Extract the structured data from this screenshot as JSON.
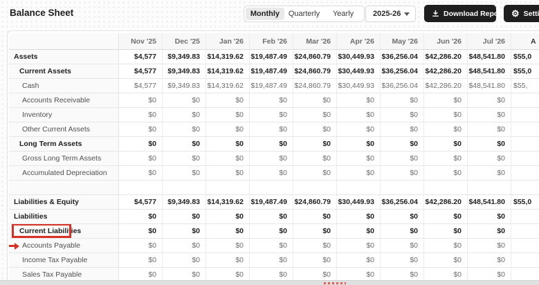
{
  "header": {
    "title": "Balance Sheet"
  },
  "toolbar": {
    "tabs": [
      {
        "label": "Monthly",
        "selected": true
      },
      {
        "label": "Quarterly",
        "selected": false
      },
      {
        "label": "Yearly",
        "selected": false
      }
    ],
    "year_value": "2025-26",
    "download_label": "Download Reports",
    "settings_label": "Settings"
  },
  "colors": {
    "annotation_red": "#d93025",
    "dark_button_bg": "#1e1e1e",
    "selected_tab_bg": "#e9e9e9"
  },
  "table": {
    "columns": [
      "Nov '25",
      "Dec '25",
      "Jan '26",
      "Feb '26",
      "Mar '26",
      "Apr '26",
      "May '26",
      "Jun '26",
      "Jul '26"
    ],
    "partial_column": "A",
    "rows": [
      {
        "label": "Assets",
        "level": 1,
        "bold": true,
        "values": [
          "$4,577",
          "$9,349.83",
          "$14,319.62",
          "$19,487.49",
          "$24,860.79",
          "$30,449.93",
          "$36,256.04",
          "$42,286.20",
          "$48,541.80"
        ],
        "partial": "$55,0"
      },
      {
        "label": "Current Assets",
        "level": 2,
        "bold": true,
        "values": [
          "$4,577",
          "$9,349.83",
          "$14,319.62",
          "$19,487.49",
          "$24,860.79",
          "$30,449.93",
          "$36,256.04",
          "$42,286.20",
          "$48,541.80"
        ],
        "partial": "$55,0"
      },
      {
        "label": "Cash",
        "level": 3,
        "bold": false,
        "values": [
          "$4,577",
          "$9,349.83",
          "$14,319.62",
          "$19,487.49",
          "$24,860.79",
          "$30,449.93",
          "$36,256.04",
          "$42,286.20",
          "$48,541.80"
        ],
        "partial": "$55,"
      },
      {
        "label": "Accounts Receivable",
        "level": 3,
        "bold": false,
        "values": [
          "$0",
          "$0",
          "$0",
          "$0",
          "$0",
          "$0",
          "$0",
          "$0",
          "$0"
        ],
        "partial": ""
      },
      {
        "label": "Inventory",
        "level": 3,
        "bold": false,
        "values": [
          "$0",
          "$0",
          "$0",
          "$0",
          "$0",
          "$0",
          "$0",
          "$0",
          "$0"
        ],
        "partial": ""
      },
      {
        "label": "Other Current Assets",
        "level": 3,
        "bold": false,
        "values": [
          "$0",
          "$0",
          "$0",
          "$0",
          "$0",
          "$0",
          "$0",
          "$0",
          "$0"
        ],
        "partial": ""
      },
      {
        "label": "Long Term Assets",
        "level": 2,
        "bold": true,
        "values": [
          "$0",
          "$0",
          "$0",
          "$0",
          "$0",
          "$0",
          "$0",
          "$0",
          "$0"
        ],
        "partial": ""
      },
      {
        "label": "Gross Long Term Assets",
        "level": 3,
        "bold": false,
        "values": [
          "$0",
          "$0",
          "$0",
          "$0",
          "$0",
          "$0",
          "$0",
          "$0",
          "$0"
        ],
        "partial": ""
      },
      {
        "label": "Accumulated Depreciation",
        "level": 3,
        "bold": false,
        "values": [
          "$0",
          "$0",
          "$0",
          "$0",
          "$0",
          "$0",
          "$0",
          "$0",
          "$0"
        ],
        "partial": ""
      },
      {
        "label": "",
        "spacer": true,
        "level": 1,
        "bold": false,
        "values": [
          "",
          "",
          "",
          "",
          "",
          "",
          "",
          "",
          ""
        ],
        "partial": ""
      },
      {
        "label": "Liabilities & Equity",
        "level": 1,
        "bold": true,
        "values": [
          "$4,577",
          "$9,349.83",
          "$14,319.62",
          "$19,487.49",
          "$24,860.79",
          "$30,449.93",
          "$36,256.04",
          "$42,286.20",
          "$48,541.80"
        ],
        "partial": "$55,0"
      },
      {
        "label": "Liabilities",
        "level": 1,
        "bold": true,
        "values": [
          "$0",
          "$0",
          "$0",
          "$0",
          "$0",
          "$0",
          "$0",
          "$0",
          "$0"
        ],
        "partial": ""
      },
      {
        "label": "Current Liabilities",
        "level": 2,
        "bold": true,
        "annotation": "red-box",
        "values": [
          "$0",
          "$0",
          "$0",
          "$0",
          "$0",
          "$0",
          "$0",
          "$0",
          "$0"
        ],
        "partial": ""
      },
      {
        "label": "Accounts Payable",
        "level": 3,
        "bold": false,
        "annotation": "red-arrow",
        "values": [
          "$0",
          "$0",
          "$0",
          "$0",
          "$0",
          "$0",
          "$0",
          "$0",
          "$0"
        ],
        "partial": ""
      },
      {
        "label": "Income Tax Payable",
        "level": 3,
        "bold": false,
        "values": [
          "$0",
          "$0",
          "$0",
          "$0",
          "$0",
          "$0",
          "$0",
          "$0",
          "$0"
        ],
        "partial": ""
      },
      {
        "label": "Sales Tax Payable",
        "level": 3,
        "bold": false,
        "values": [
          "$0",
          "$0",
          "$0",
          "$0",
          "$0",
          "$0",
          "$0",
          "$0",
          "$0"
        ],
        "partial": ""
      }
    ]
  }
}
